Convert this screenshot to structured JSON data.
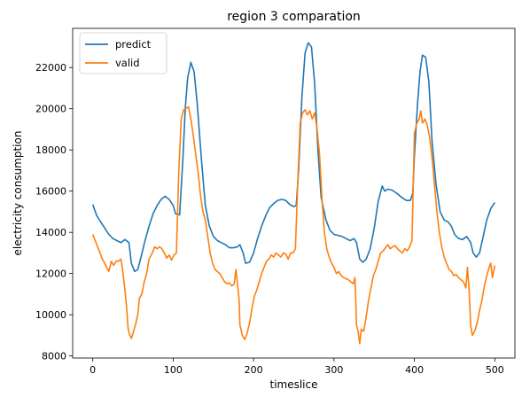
{
  "chart_data": {
    "type": "line",
    "title": "region 3 comparation",
    "xlabel": "timeslice",
    "ylabel": "electricity consumption",
    "xlim": [
      -25,
      525
    ],
    "ylim": [
      7900,
      23900
    ],
    "xticks": [
      0,
      100,
      200,
      300,
      400,
      500
    ],
    "yticks": [
      8000,
      10000,
      12000,
      14000,
      16000,
      18000,
      20000,
      22000
    ],
    "grid": false,
    "legend_position": "top-left",
    "series": [
      {
        "name": "predict",
        "color": "#1f77b4",
        "points": [
          [
            0,
            15350
          ],
          [
            5,
            14800
          ],
          [
            10,
            14500
          ],
          [
            15,
            14200
          ],
          [
            20,
            13900
          ],
          [
            25,
            13700
          ],
          [
            30,
            13600
          ],
          [
            35,
            13500
          ],
          [
            40,
            13650
          ],
          [
            45,
            13500
          ],
          [
            48,
            12500
          ],
          [
            52,
            12100
          ],
          [
            56,
            12200
          ],
          [
            60,
            12800
          ],
          [
            65,
            13600
          ],
          [
            70,
            14300
          ],
          [
            75,
            14900
          ],
          [
            80,
            15300
          ],
          [
            85,
            15600
          ],
          [
            90,
            15750
          ],
          [
            95,
            15600
          ],
          [
            100,
            15300
          ],
          [
            103,
            14900
          ],
          [
            108,
            14850
          ],
          [
            112,
            17500
          ],
          [
            115,
            20000
          ],
          [
            118,
            21500
          ],
          [
            122,
            22250
          ],
          [
            126,
            21800
          ],
          [
            130,
            20200
          ],
          [
            135,
            17600
          ],
          [
            140,
            15300
          ],
          [
            145,
            14300
          ],
          [
            150,
            13800
          ],
          [
            155,
            13600
          ],
          [
            160,
            13500
          ],
          [
            165,
            13400
          ],
          [
            170,
            13250
          ],
          [
            175,
            13250
          ],
          [
            180,
            13300
          ],
          [
            183,
            13400
          ],
          [
            187,
            13000
          ],
          [
            190,
            12500
          ],
          [
            195,
            12550
          ],
          [
            200,
            13000
          ],
          [
            205,
            13700
          ],
          [
            210,
            14300
          ],
          [
            215,
            14800
          ],
          [
            220,
            15200
          ],
          [
            225,
            15400
          ],
          [
            230,
            15550
          ],
          [
            235,
            15600
          ],
          [
            240,
            15550
          ],
          [
            245,
            15350
          ],
          [
            250,
            15250
          ],
          [
            253,
            15300
          ],
          [
            256,
            17000
          ],
          [
            260,
            20500
          ],
          [
            264,
            22700
          ],
          [
            268,
            23200
          ],
          [
            272,
            23000
          ],
          [
            276,
            21200
          ],
          [
            280,
            18000
          ],
          [
            284,
            15700
          ],
          [
            290,
            14600
          ],
          [
            295,
            14100
          ],
          [
            300,
            13900
          ],
          [
            305,
            13850
          ],
          [
            310,
            13800
          ],
          [
            315,
            13700
          ],
          [
            320,
            13600
          ],
          [
            325,
            13700
          ],
          [
            328,
            13500
          ],
          [
            332,
            12700
          ],
          [
            336,
            12550
          ],
          [
            340,
            12700
          ],
          [
            345,
            13200
          ],
          [
            350,
            14200
          ],
          [
            355,
            15500
          ],
          [
            360,
            16250
          ],
          [
            363,
            16000
          ],
          [
            367,
            16100
          ],
          [
            372,
            16050
          ],
          [
            378,
            15900
          ],
          [
            384,
            15700
          ],
          [
            390,
            15550
          ],
          [
            395,
            15550
          ],
          [
            398,
            15900
          ],
          [
            400,
            17700
          ],
          [
            404,
            20300
          ],
          [
            407,
            21800
          ],
          [
            410,
            22600
          ],
          [
            414,
            22500
          ],
          [
            418,
            21300
          ],
          [
            422,
            18400
          ],
          [
            427,
            16300
          ],
          [
            432,
            15000
          ],
          [
            437,
            14600
          ],
          [
            442,
            14500
          ],
          [
            446,
            14300
          ],
          [
            450,
            13900
          ],
          [
            455,
            13700
          ],
          [
            460,
            13650
          ],
          [
            465,
            13800
          ],
          [
            470,
            13500
          ],
          [
            473,
            13000
          ],
          [
            477,
            12800
          ],
          [
            481,
            13000
          ],
          [
            485,
            13700
          ],
          [
            490,
            14600
          ],
          [
            495,
            15150
          ],
          [
            500,
            15450
          ]
        ]
      },
      {
        "name": "valid",
        "color": "#ff7f0e",
        "points": [
          [
            0,
            13900
          ],
          [
            4,
            13500
          ],
          [
            8,
            13100
          ],
          [
            12,
            12700
          ],
          [
            16,
            12400
          ],
          [
            20,
            12100
          ],
          [
            23,
            12600
          ],
          [
            26,
            12400
          ],
          [
            29,
            12600
          ],
          [
            32,
            12600
          ],
          [
            35,
            12700
          ],
          [
            37,
            12200
          ],
          [
            40,
            11200
          ],
          [
            42,
            10400
          ],
          [
            44,
            9300
          ],
          [
            46,
            9000
          ],
          [
            48,
            8850
          ],
          [
            50,
            9100
          ],
          [
            53,
            9500
          ],
          [
            56,
            10000
          ],
          [
            58,
            10800
          ],
          [
            61,
            11000
          ],
          [
            64,
            11600
          ],
          [
            67,
            12000
          ],
          [
            70,
            12700
          ],
          [
            74,
            13000
          ],
          [
            77,
            13300
          ],
          [
            80,
            13200
          ],
          [
            83,
            13300
          ],
          [
            86,
            13200
          ],
          [
            89,
            13000
          ],
          [
            92,
            12750
          ],
          [
            95,
            12900
          ],
          [
            98,
            12650
          ],
          [
            101,
            12900
          ],
          [
            104,
            13000
          ],
          [
            107,
            17000
          ],
          [
            110,
            19500
          ],
          [
            113,
            19950
          ],
          [
            116,
            20000
          ],
          [
            119,
            20100
          ],
          [
            122,
            19500
          ],
          [
            125,
            18700
          ],
          [
            128,
            17800
          ],
          [
            131,
            16900
          ],
          [
            134,
            15800
          ],
          [
            137,
            15000
          ],
          [
            140,
            14600
          ],
          [
            143,
            13800
          ],
          [
            146,
            13000
          ],
          [
            149,
            12500
          ],
          [
            152,
            12200
          ],
          [
            155,
            12100
          ],
          [
            158,
            12000
          ],
          [
            161,
            11800
          ],
          [
            164,
            11600
          ],
          [
            167,
            11500
          ],
          [
            170,
            11550
          ],
          [
            173,
            11400
          ],
          [
            176,
            11500
          ],
          [
            178,
            12200
          ],
          [
            180,
            11500
          ],
          [
            182,
            10700
          ],
          [
            183,
            9500
          ],
          [
            186,
            9000
          ],
          [
            189,
            8800
          ],
          [
            192,
            9100
          ],
          [
            195,
            9600
          ],
          [
            198,
            10300
          ],
          [
            201,
            10900
          ],
          [
            204,
            11200
          ],
          [
            207,
            11600
          ],
          [
            210,
            12000
          ],
          [
            213,
            12300
          ],
          [
            216,
            12600
          ],
          [
            219,
            12700
          ],
          [
            222,
            12900
          ],
          [
            225,
            12800
          ],
          [
            228,
            13000
          ],
          [
            231,
            12900
          ],
          [
            234,
            12800
          ],
          [
            237,
            13000
          ],
          [
            240,
            12950
          ],
          [
            243,
            12700
          ],
          [
            246,
            13000
          ],
          [
            249,
            13000
          ],
          [
            252,
            13200
          ],
          [
            255,
            16500
          ],
          [
            258,
            19300
          ],
          [
            261,
            19800
          ],
          [
            264,
            19950
          ],
          [
            267,
            19700
          ],
          [
            270,
            19900
          ],
          [
            273,
            19500
          ],
          [
            276,
            19800
          ],
          [
            279,
            19000
          ],
          [
            282,
            17800
          ],
          [
            285,
            15700
          ],
          [
            288,
            14000
          ],
          [
            291,
            13200
          ],
          [
            294,
            12800
          ],
          [
            297,
            12500
          ],
          [
            300,
            12300
          ],
          [
            303,
            12000
          ],
          [
            306,
            12100
          ],
          [
            309,
            11900
          ],
          [
            312,
            11800
          ],
          [
            315,
            11750
          ],
          [
            318,
            11700
          ],
          [
            321,
            11600
          ],
          [
            324,
            11500
          ],
          [
            326,
            11800
          ],
          [
            327,
            10800
          ],
          [
            328,
            9500
          ],
          [
            330,
            9200
          ],
          [
            332,
            8600
          ],
          [
            334,
            9300
          ],
          [
            337,
            9200
          ],
          [
            340,
            9900
          ],
          [
            343,
            10700
          ],
          [
            346,
            11300
          ],
          [
            349,
            11900
          ],
          [
            352,
            12200
          ],
          [
            355,
            12600
          ],
          [
            358,
            13000
          ],
          [
            361,
            13100
          ],
          [
            364,
            13250
          ],
          [
            367,
            13400
          ],
          [
            370,
            13200
          ],
          [
            373,
            13300
          ],
          [
            376,
            13350
          ],
          [
            379,
            13200
          ],
          [
            382,
            13100
          ],
          [
            385,
            13000
          ],
          [
            388,
            13200
          ],
          [
            391,
            13100
          ],
          [
            394,
            13300
          ],
          [
            397,
            13600
          ],
          [
            400,
            18800
          ],
          [
            403,
            19300
          ],
          [
            406,
            19500
          ],
          [
            408,
            19900
          ],
          [
            410,
            19300
          ],
          [
            413,
            19500
          ],
          [
            416,
            19200
          ],
          [
            419,
            18600
          ],
          [
            422,
            17600
          ],
          [
            425,
            16300
          ],
          [
            428,
            15000
          ],
          [
            431,
            14000
          ],
          [
            434,
            13300
          ],
          [
            437,
            12800
          ],
          [
            440,
            12500
          ],
          [
            443,
            12200
          ],
          [
            446,
            12100
          ],
          [
            449,
            11900
          ],
          [
            452,
            11950
          ],
          [
            455,
            11800
          ],
          [
            458,
            11700
          ],
          [
            461,
            11600
          ],
          [
            464,
            11300
          ],
          [
            466,
            12300
          ],
          [
            468,
            11200
          ],
          [
            470,
            9500
          ],
          [
            472,
            9000
          ],
          [
            475,
            9200
          ],
          [
            478,
            9600
          ],
          [
            481,
            10200
          ],
          [
            484,
            10700
          ],
          [
            487,
            11400
          ],
          [
            490,
            11900
          ],
          [
            493,
            12300
          ],
          [
            495,
            12500
          ],
          [
            497,
            11800
          ],
          [
            500,
            12400
          ]
        ]
      }
    ]
  }
}
